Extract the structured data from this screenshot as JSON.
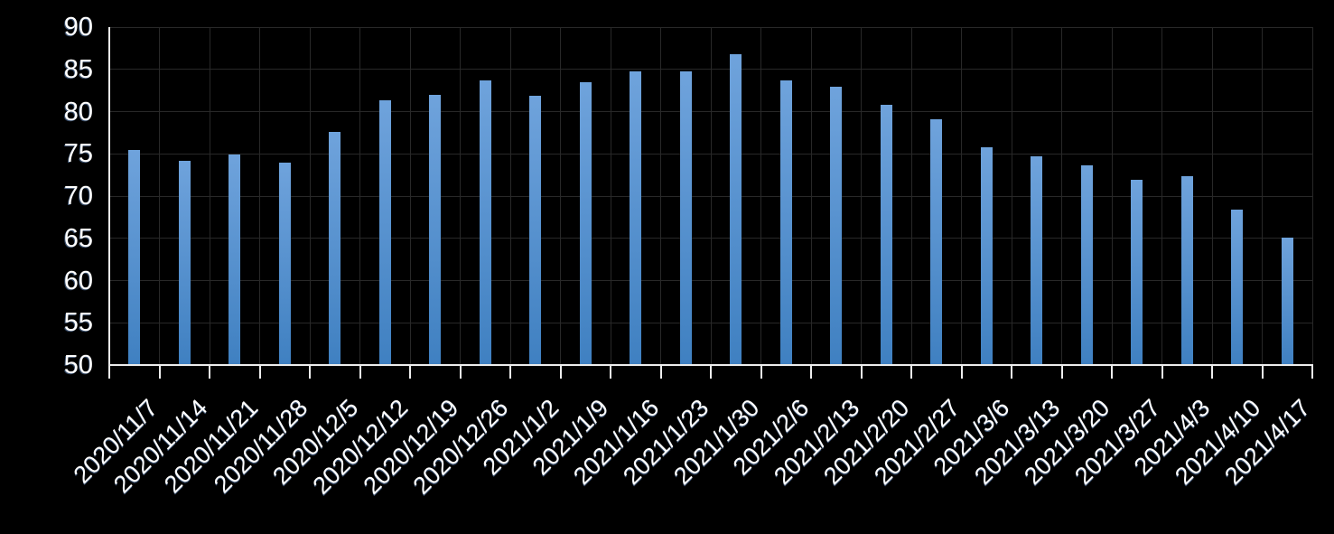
{
  "chart_data": {
    "type": "bar",
    "title": "",
    "xlabel": "",
    "ylabel": "",
    "categories": [
      "2020/11/7",
      "2020/11/14",
      "2020/11/21",
      "2020/11/28",
      "2020/12/5",
      "2020/12/12",
      "2020/12/19",
      "2020/12/26",
      "2021/1/2",
      "2021/1/9",
      "2021/1/16",
      "2021/1/23",
      "2021/1/30",
      "2021/2/6",
      "2021/2/13",
      "2021/2/20",
      "2021/2/27",
      "2021/3/6",
      "2021/3/13",
      "2021/3/20",
      "2021/3/27",
      "2021/4/3",
      "2021/4/10",
      "2021/4/17"
    ],
    "values": [
      75.5,
      74.2,
      74.9,
      74.0,
      77.6,
      81.3,
      82.0,
      83.7,
      81.9,
      83.5,
      84.8,
      84.8,
      86.8,
      83.7,
      82.9,
      80.8,
      79.1,
      75.8,
      74.7,
      73.6,
      71.9,
      72.4,
      68.4,
      65.1
    ],
    "ylim": [
      50,
      90
    ],
    "y_ticks": [
      50,
      55,
      60,
      65,
      70,
      75,
      80,
      85,
      90
    ],
    "grid": true,
    "legend": false,
    "x_label_rotation_deg": -45,
    "colors": {
      "background": "#000000",
      "bar_top": "#6FA3DC",
      "bar_bottom": "#3F80C1",
      "grid_line": "#282828",
      "axis_line": "#EDEDED",
      "tick_label": "#FFFFFF"
    }
  }
}
